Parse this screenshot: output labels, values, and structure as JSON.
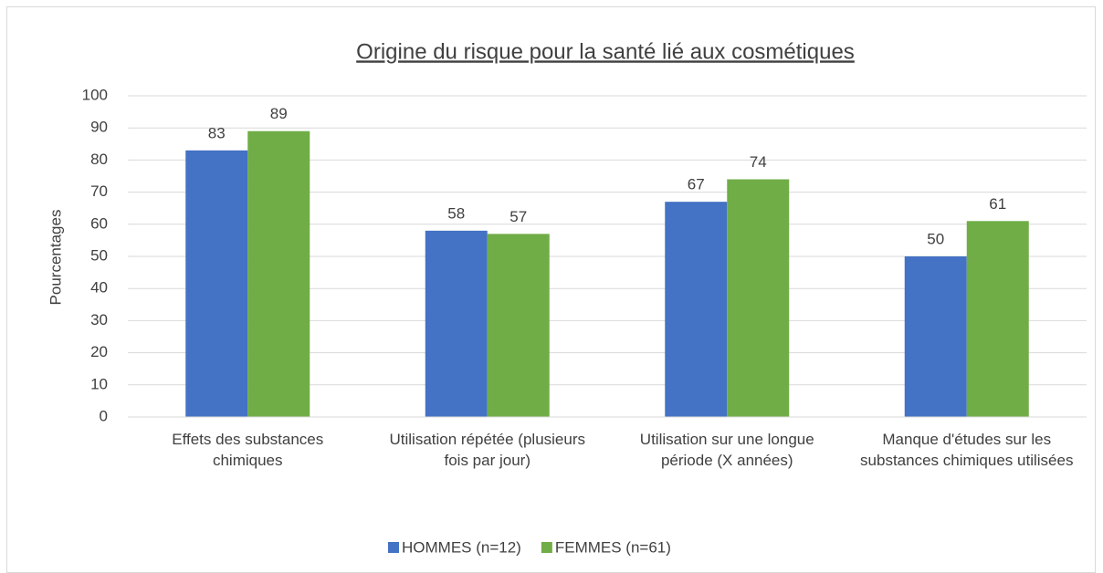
{
  "chart_data": {
    "type": "bar",
    "title": "Origine du risque pour la santé lié aux cosmétiques",
    "y_label": "Pourcentages",
    "categories": [
      "Effets des substances chimiques",
      "Utilisation répétée (plusieurs fois par jour)",
      "Utilisation sur une longue période (X années)",
      "Manque d'études sur les substances chimiques utilisées"
    ],
    "series": [
      {
        "name": "HOMMES (n=12)",
        "color": "#4472c4",
        "values": [
          83,
          58,
          67,
          50
        ]
      },
      {
        "name": "FEMMES (n=61)",
        "color": "#70ad47",
        "values": [
          89,
          57,
          74,
          61
        ]
      }
    ],
    "ylim": [
      0,
      100
    ],
    "yticks": [
      0,
      10,
      20,
      30,
      40,
      50,
      60,
      70,
      80,
      90,
      100
    ],
    "grid": true,
    "legend": "bottom"
  }
}
